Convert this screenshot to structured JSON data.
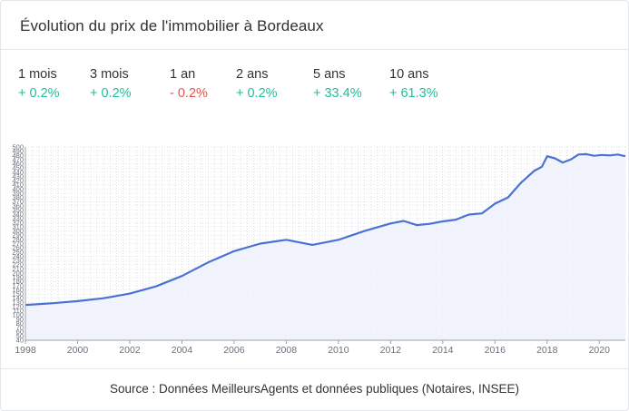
{
  "header": {
    "title": "Évolution du prix de l'immobilier à Bordeaux"
  },
  "stats": [
    {
      "label": "1 mois",
      "value": "+ 0.2%",
      "trend": "up"
    },
    {
      "label": "3 mois",
      "value": "+ 0.2%",
      "trend": "up"
    },
    {
      "label": "1 an",
      "value": "- 0.2%",
      "trend": "down"
    },
    {
      "label": "2 ans",
      "value": "+ 0.2%",
      "trend": "up"
    },
    {
      "label": "5 ans",
      "value": "+ 33.4%",
      "trend": "up"
    },
    {
      "label": "10 ans",
      "value": "+ 61.3%",
      "trend": "up"
    }
  ],
  "footer": {
    "source": "Source : Données MeilleursAgents et données publiques (Notaires, INSEE)"
  },
  "colors": {
    "line": "#4a72d4",
    "area": "#eef2fb",
    "grid": "#c9ced6",
    "positive": "#1fbf9a",
    "negative": "#e2574c"
  },
  "chart_data": {
    "type": "area",
    "title": "",
    "xlabel": "",
    "ylabel": "",
    "xlim": [
      1998,
      2021
    ],
    "ylim": [
      40,
      500
    ],
    "x_ticks": [
      1998,
      2000,
      2002,
      2004,
      2006,
      2008,
      2010,
      2012,
      2014,
      2016,
      2018,
      2020
    ],
    "y_ticks": [
      40,
      50,
      60,
      70,
      80,
      90,
      100,
      110,
      120,
      130,
      140,
      150,
      160,
      170,
      180,
      190,
      200,
      210,
      220,
      230,
      240,
      250,
      260,
      270,
      280,
      290,
      300,
      310,
      320,
      330,
      340,
      350,
      360,
      370,
      380,
      390,
      400,
      410,
      420,
      430,
      440,
      450,
      460,
      470,
      480,
      490,
      500
    ],
    "grid": true,
    "series": [
      {
        "x": [
          1998,
          1999,
          2000,
          2001,
          2002,
          2003,
          2004,
          2005,
          2006,
          2007,
          2008,
          2009,
          2010,
          2011,
          2012,
          2012.5,
          2013,
          2013.5,
          2014,
          2014.5,
          2015,
          2015.5,
          2016,
          2016.5,
          2017,
          2017.5,
          2017.8,
          2018,
          2018.3,
          2018.6,
          2018.9,
          2019.2,
          2019.5,
          2019.8,
          2020.1,
          2020.4,
          2020.7,
          2021
        ],
        "y": [
          124,
          128,
          133,
          140,
          151,
          168,
          193,
          225,
          252,
          270,
          279,
          267,
          279,
          300,
          318,
          324,
          314,
          317,
          323,
          327,
          339,
          342,
          365,
          380,
          415,
          443,
          453,
          478,
          473,
          463,
          470,
          482,
          483,
          479,
          481,
          480,
          482,
          478
        ]
      }
    ]
  }
}
